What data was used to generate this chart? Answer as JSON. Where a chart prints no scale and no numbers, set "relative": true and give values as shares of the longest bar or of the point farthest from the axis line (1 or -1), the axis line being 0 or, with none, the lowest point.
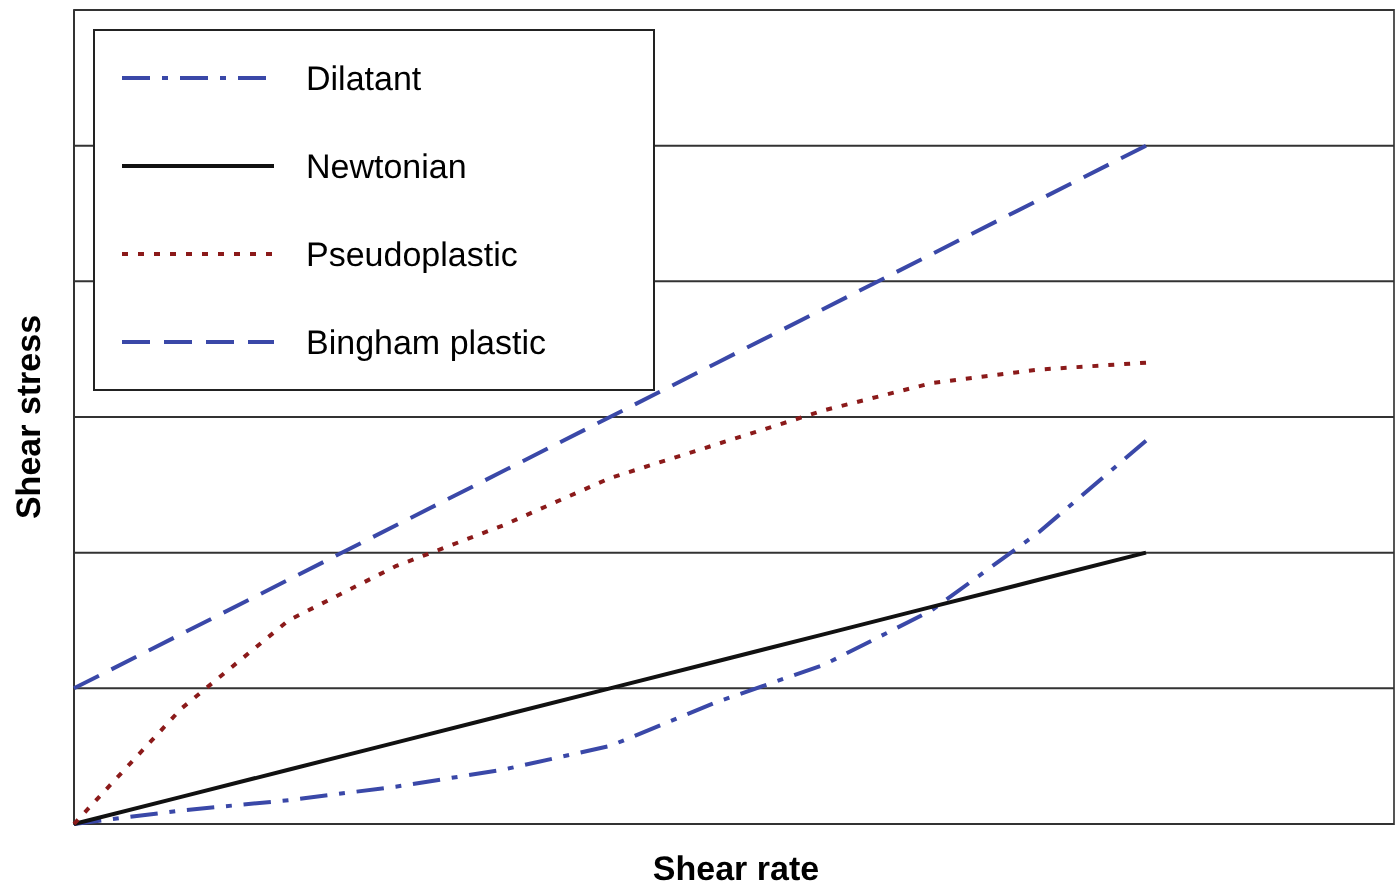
{
  "chart_data": {
    "type": "line",
    "relative": true,
    "xlabel": "Shear rate",
    "ylabel": "Shear stress",
    "categories": [
      null,
      null,
      null,
      null,
      null,
      null,
      null,
      null,
      null,
      null,
      null
    ],
    "grid": "y",
    "legend": "top left",
    "series": [
      {
        "name": "Dilatant",
        "color": "#3a48a8",
        "line_style": "dashdot",
        "values": [
          0,
          0.02,
          0.035,
          0.055,
          0.08,
          0.115,
          0.18,
          0.235,
          0.315,
          0.43,
          0.565
        ]
      },
      {
        "name": "Newtonian",
        "color": "#111111",
        "line_style": "solid",
        "values": [
          0,
          0.04,
          0.08,
          0.12,
          0.16,
          0.2,
          0.24,
          0.28,
          0.32,
          0.36,
          0.4
        ]
      },
      {
        "name": "Pseudoplastic",
        "color": "#8b1a1a",
        "line_style": "dotted",
        "values": [
          0,
          0.17,
          0.3,
          0.38,
          0.44,
          0.51,
          0.56,
          0.61,
          0.65,
          0.67,
          0.68
        ]
      },
      {
        "name": "Bingham plastic",
        "color": "#3a48a8",
        "line_style": "dashed",
        "values": [
          0.2,
          0.28,
          0.36,
          0.44,
          0.52,
          0.6,
          0.68,
          0.76,
          0.84,
          0.92,
          1
        ]
      }
    ]
  }
}
